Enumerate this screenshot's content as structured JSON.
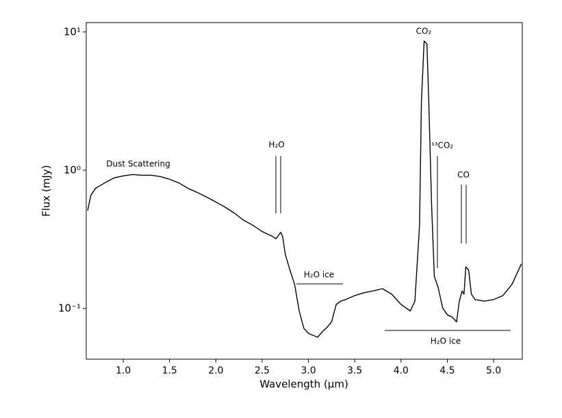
{
  "chart_data": {
    "type": "line",
    "xlabel": "Wavelength (μm)",
    "ylabel": "Flux (mJy)",
    "log_y": true,
    "color": "#000000",
    "xlim": [
      0.6,
      5.31
    ],
    "ylim": [
      0.043,
      11.7
    ],
    "xticks": [
      {
        "value": 1,
        "label": "1.0"
      },
      1.5,
      {
        "value": 2,
        "label": "2.0"
      },
      2.5,
      {
        "value": 3,
        "label": "3.0"
      },
      3.5,
      {
        "value": 4,
        "label": "4.0"
      },
      4.5,
      {
        "value": 5,
        "label": "5.0"
      }
    ],
    "yticks": [
      {
        "value": 0.1,
        "label": "10⁻¹"
      },
      {
        "value": 1,
        "label": "10⁰"
      },
      {
        "value": 10,
        "label": "10¹"
      }
    ],
    "annotations": [
      "Dust Scattering",
      "H₂O",
      "H₂O ice",
      "CO₂",
      "¹³CO₂",
      "CO",
      "H₂O ice"
    ],
    "x": [
      0.615,
      0.65,
      0.7,
      0.8,
      0.9,
      1.0,
      1.1,
      1.2,
      1.3,
      1.4,
      1.5,
      1.6,
      1.7,
      1.8,
      1.9,
      2.0,
      2.1,
      2.2,
      2.3,
      2.4,
      2.5,
      2.6,
      2.65,
      2.7,
      2.72,
      2.75,
      2.8,
      2.85,
      2.9,
      2.95,
      3.0,
      3.05,
      3.1,
      3.15,
      3.2,
      3.25,
      3.3,
      3.35,
      3.4,
      3.5,
      3.6,
      3.7,
      3.8,
      3.9,
      4.0,
      4.1,
      4.15,
      4.2,
      4.22,
      4.25,
      4.28,
      4.3,
      4.33,
      4.36,
      4.4,
      4.45,
      4.5,
      4.55,
      4.6,
      4.63,
      4.66,
      4.68,
      4.7,
      4.73,
      4.76,
      4.8,
      4.9,
      5.0,
      5.1,
      5.2,
      5.3
    ],
    "series": [
      {
        "name": "Flux",
        "color": "#000000",
        "values": [
          0.51,
          0.66,
          0.74,
          0.81,
          0.88,
          0.91,
          0.93,
          0.92,
          0.92,
          0.9,
          0.86,
          0.81,
          0.74,
          0.69,
          0.64,
          0.59,
          0.54,
          0.49,
          0.435,
          0.4,
          0.36,
          0.335,
          0.32,
          0.355,
          0.335,
          0.246,
          0.19,
          0.15,
          0.096,
          0.072,
          0.066,
          0.064,
          0.062,
          0.068,
          0.073,
          0.08,
          0.107,
          0.113,
          0.116,
          0.124,
          0.13,
          0.134,
          0.139,
          0.127,
          0.107,
          0.096,
          0.113,
          0.4,
          3.1,
          8.6,
          8.2,
          3.1,
          0.56,
          0.17,
          0.143,
          0.101,
          0.09,
          0.087,
          0.08,
          0.113,
          0.134,
          0.127,
          0.2,
          0.19,
          0.127,
          0.116,
          0.113,
          0.116,
          0.124,
          0.15,
          0.21
        ]
      }
    ]
  }
}
